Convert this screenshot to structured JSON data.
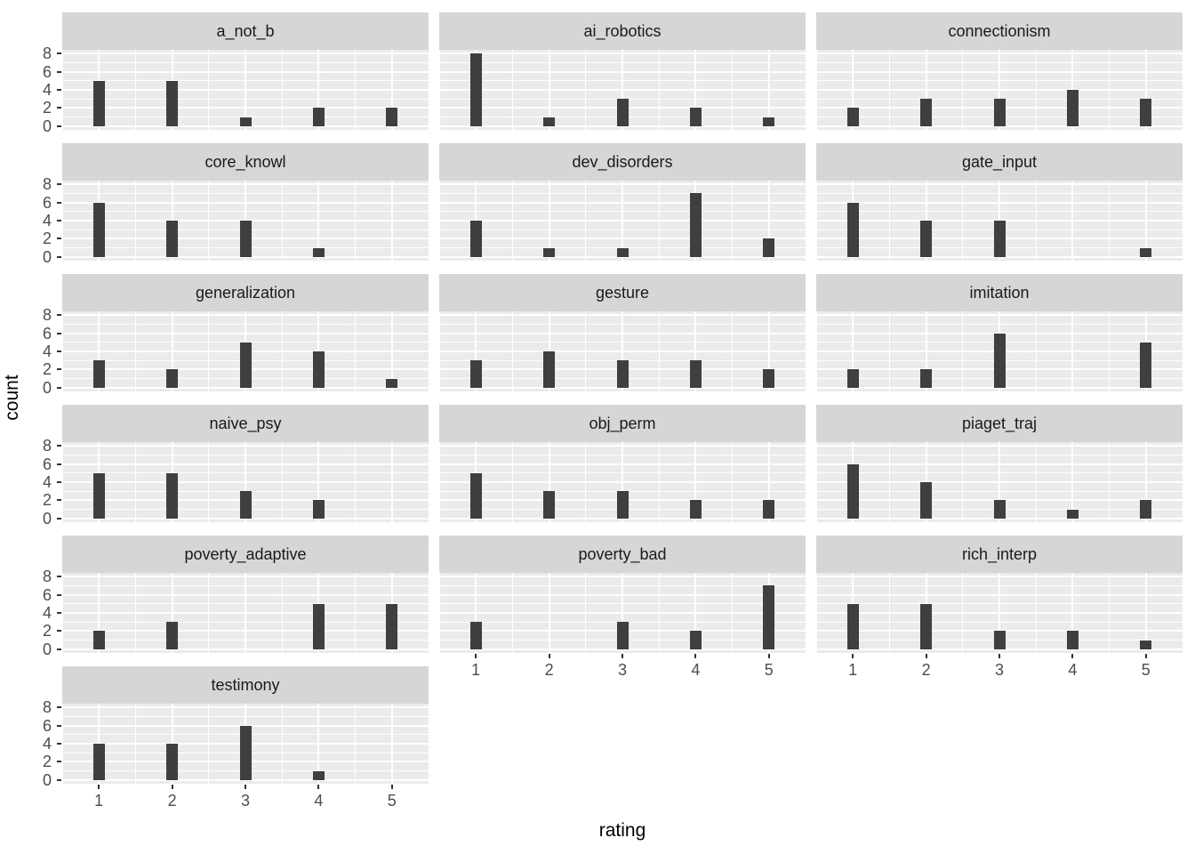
{
  "chart_data": {
    "type": "bar",
    "title": "",
    "xlabel": "rating",
    "ylabel": "count",
    "x_ticks": [
      1,
      2,
      3,
      4,
      5
    ],
    "y_ticks": [
      0,
      2,
      4,
      6,
      8
    ],
    "ylim": [
      -0.4,
      8.4
    ],
    "xlim": [
      0.5,
      5.5
    ],
    "grid": true,
    "legend": "none",
    "facet_columns": 3,
    "facets": [
      {
        "label": "a_not_b",
        "values": [
          5,
          5,
          1,
          2,
          2
        ]
      },
      {
        "label": "ai_robotics",
        "values": [
          8,
          1,
          3,
          2,
          1
        ]
      },
      {
        "label": "connectionism",
        "values": [
          2,
          3,
          3,
          4,
          3
        ]
      },
      {
        "label": "core_knowl",
        "values": [
          6,
          4,
          4,
          1,
          0
        ]
      },
      {
        "label": "dev_disorders",
        "values": [
          4,
          1,
          1,
          7,
          2
        ]
      },
      {
        "label": "gate_input",
        "values": [
          6,
          4,
          4,
          0,
          1
        ]
      },
      {
        "label": "generalization",
        "values": [
          3,
          2,
          5,
          4,
          1
        ]
      },
      {
        "label": "gesture",
        "values": [
          3,
          4,
          3,
          3,
          2
        ]
      },
      {
        "label": "imitation",
        "values": [
          2,
          2,
          6,
          0,
          5
        ]
      },
      {
        "label": "naive_psy",
        "values": [
          5,
          5,
          3,
          2,
          0
        ]
      },
      {
        "label": "obj_perm",
        "values": [
          5,
          3,
          3,
          2,
          2
        ]
      },
      {
        "label": "piaget_traj",
        "values": [
          6,
          4,
          2,
          1,
          2
        ]
      },
      {
        "label": "poverty_adaptive",
        "values": [
          2,
          3,
          0,
          5,
          5
        ]
      },
      {
        "label": "poverty_bad",
        "values": [
          3,
          0,
          3,
          2,
          7
        ]
      },
      {
        "label": "rich_interp",
        "values": [
          5,
          5,
          2,
          2,
          1
        ]
      },
      {
        "label": "testimony",
        "values": [
          4,
          4,
          6,
          1,
          0
        ]
      }
    ],
    "colors": {
      "bar": "#3f3f3f",
      "panel_background": "#ebebeb",
      "strip_background": "#d6d6d6",
      "gridline": "#ffffff",
      "axis_text": "#4d4d4d",
      "tick_mark": "#333333",
      "strip_text": "#1a1a1a"
    }
  }
}
